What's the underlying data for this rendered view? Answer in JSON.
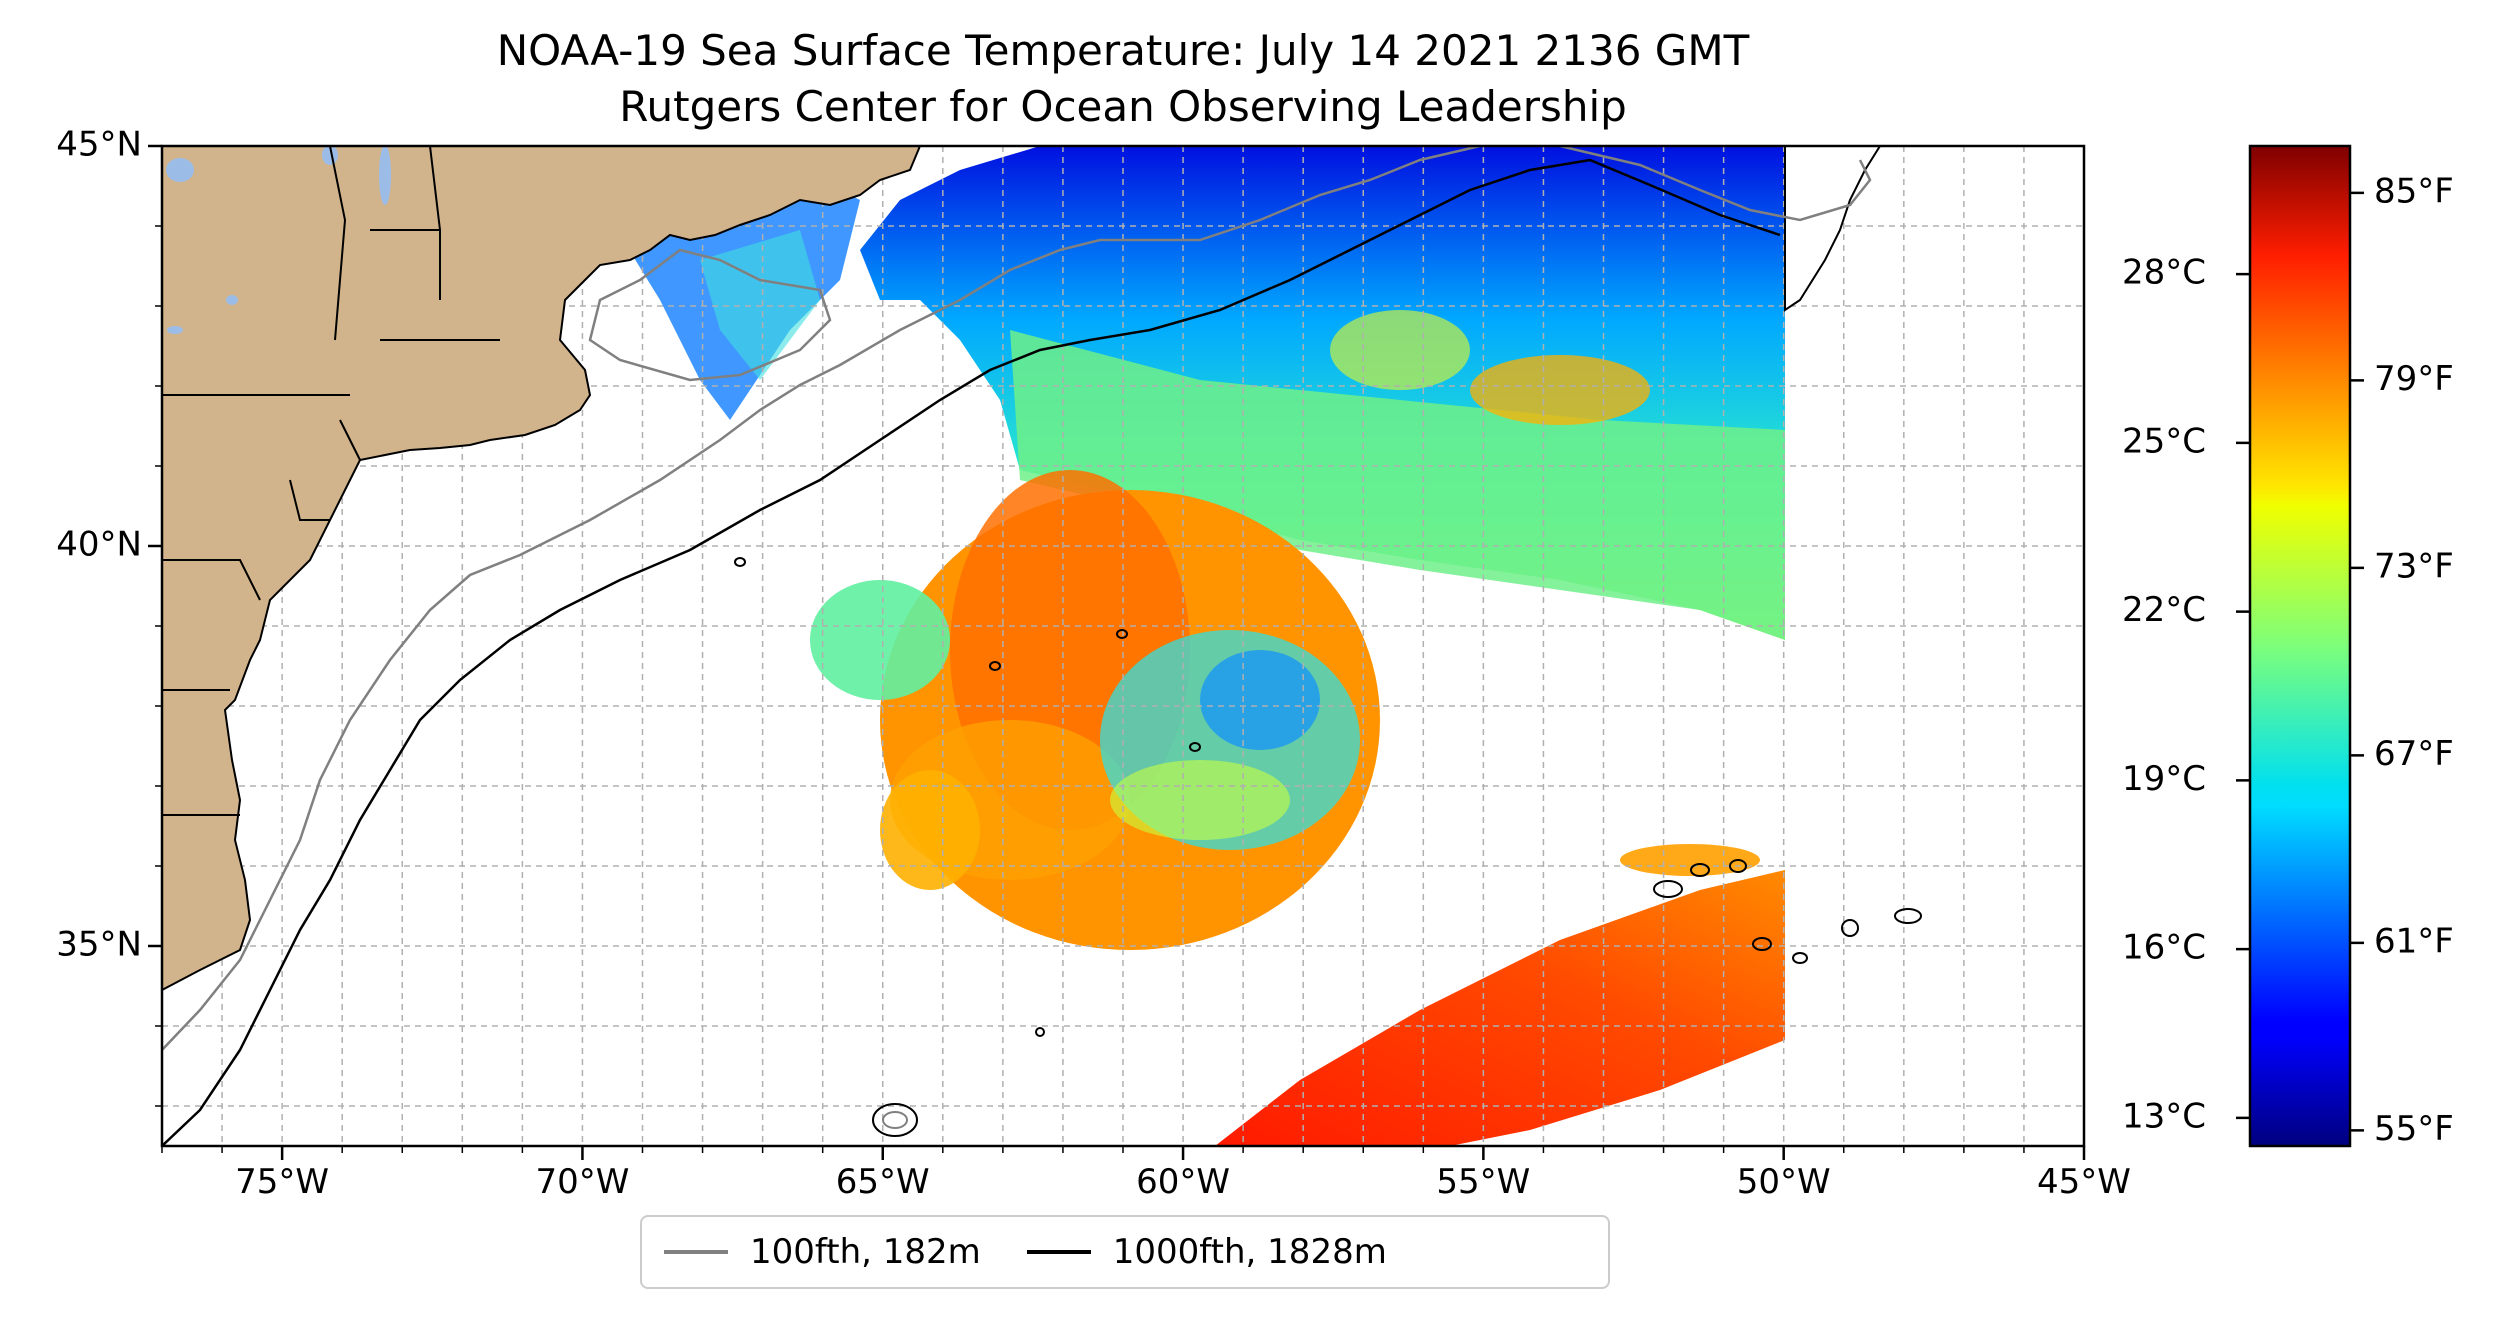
{
  "title": "NOAA-19 Sea Surface Temperature: July 14 2021 2136 GMT",
  "subtitle": "Rutgers Center for Ocean Observing Leadership",
  "map": {
    "extent": {
      "lon": [
        -77,
        -45
      ],
      "lat": [
        32.5,
        45
      ]
    },
    "lat_ticks": [
      {
        "value": 45,
        "label": "45°N"
      },
      {
        "value": 40,
        "label": "40°N"
      },
      {
        "value": 35,
        "label": "35°N"
      }
    ],
    "lon_ticks": [
      {
        "value": -75,
        "label": "75°W"
      },
      {
        "value": -70,
        "label": "70°W"
      },
      {
        "value": -65,
        "label": "65°W"
      },
      {
        "value": -60,
        "label": "60°W"
      },
      {
        "value": -55,
        "label": "55°W"
      },
      {
        "value": -50,
        "label": "50°W"
      },
      {
        "value": -45,
        "label": "45°W"
      }
    ],
    "gridlines": true,
    "land_color": "#d2b48c",
    "lake_color": "#9cbce8"
  },
  "colorbar": {
    "colormap": "jet",
    "range_f": [
      54.5,
      86.5
    ],
    "celsius_ticks": [
      {
        "value": 28,
        "label": "28°C"
      },
      {
        "value": 25,
        "label": "25°C"
      },
      {
        "value": 22,
        "label": "22°C"
      },
      {
        "value": 19,
        "label": "19°C"
      },
      {
        "value": 16,
        "label": "16°C"
      },
      {
        "value": 13,
        "label": "13°C"
      }
    ],
    "fahrenheit_ticks": [
      {
        "value": 85,
        "label": "85°F"
      },
      {
        "value": 79,
        "label": "79°F"
      },
      {
        "value": 73,
        "label": "73°F"
      },
      {
        "value": 67,
        "label": "67°F"
      },
      {
        "value": 61,
        "label": "61°F"
      },
      {
        "value": 55,
        "label": "55°F"
      }
    ]
  },
  "legend": {
    "items": [
      {
        "label": "100fth, 182m",
        "color": "#808080"
      },
      {
        "label": "1000fth, 1828m",
        "color": "#000000"
      }
    ]
  }
}
